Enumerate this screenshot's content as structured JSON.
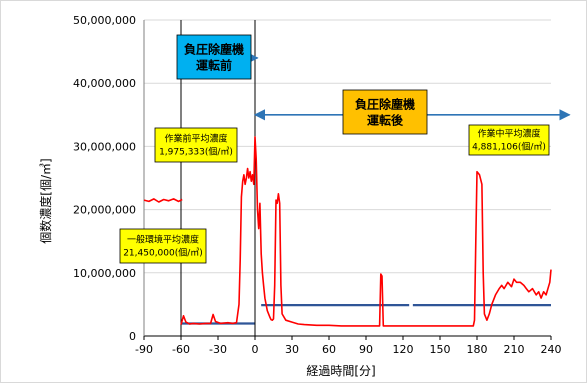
{
  "chart_data": {
    "type": "line",
    "ylabel": "個数濃度[個/㎥]",
    "xlabel": "経過時間[分]",
    "xlim": [
      -90,
      240
    ],
    "ylim": [
      0,
      50000000
    ],
    "xticks": [
      -90,
      -60,
      -30,
      0,
      30,
      60,
      90,
      120,
      150,
      180,
      210,
      240
    ],
    "xtick_labels": [
      "-90",
      "-60",
      "-30",
      "0",
      "30",
      "60",
      "90",
      "120",
      "150",
      "180",
      "210",
      "240"
    ],
    "yticks": [
      0,
      10000000,
      20000000,
      30000000,
      40000000,
      50000000
    ],
    "ytick_labels": [
      "0",
      "10,000,000",
      "20,000,000",
      "30,000,000",
      "40,000,000",
      "50,000,000"
    ],
    "grid": "horizontal",
    "series": [
      {
        "color": "#ff0000",
        "segments": [
          [
            [
              -90,
              21500000
            ],
            [
              -86,
              21300000
            ],
            [
              -82,
              21700000
            ],
            [
              -78,
              21200000
            ],
            [
              -74,
              21600000
            ],
            [
              -70,
              21400000
            ],
            [
              -66,
              21700000
            ],
            [
              -62,
              21300000
            ],
            [
              -59,
              21600000
            ]
          ],
          [
            [
              -60,
              1800000
            ],
            [
              -58,
              3200000
            ],
            [
              -56,
              2200000
            ],
            [
              -53,
              1900000
            ],
            [
              -50,
              2000000
            ],
            [
              -45,
              1900000
            ],
            [
              -40,
              2000000
            ],
            [
              -36,
              2000000
            ],
            [
              -34,
              3400000
            ],
            [
              -32,
              2300000
            ],
            [
              -28,
              2000000
            ],
            [
              -22,
              2100000
            ],
            [
              -18,
              2000000
            ],
            [
              -15,
              2100000
            ],
            [
              -13,
              5000000
            ],
            [
              -12,
              12000000
            ],
            [
              -11,
              22000000
            ],
            [
              -10,
              24500000
            ],
            [
              -9,
              25500000
            ],
            [
              -8,
              24000000
            ],
            [
              -7,
              25000000
            ],
            [
              -6,
              26500000
            ],
            [
              -5,
              25000000
            ],
            [
              -4,
              26000000
            ],
            [
              -3,
              24500000
            ],
            [
              -2,
              25500000
            ],
            [
              -1,
              24000000
            ],
            [
              0,
              31500000
            ],
            [
              1,
              28000000
            ],
            [
              2,
              20000000
            ],
            [
              3,
              17000000
            ],
            [
              4,
              21000000
            ],
            [
              5,
              13000000
            ],
            [
              6,
              10000000
            ],
            [
              7,
              8000000
            ],
            [
              8,
              6000000
            ],
            [
              9,
              5000000
            ],
            [
              10,
              4000000
            ],
            [
              11,
              3500000
            ],
            [
              12,
              3000000
            ],
            [
              13,
              2600000
            ],
            [
              14,
              2500000
            ],
            [
              15,
              2700000
            ],
            [
              16,
              8000000
            ],
            [
              17,
              21500000
            ],
            [
              18,
              21000000
            ],
            [
              19,
              22500000
            ],
            [
              20,
              21000000
            ],
            [
              21,
              8000000
            ],
            [
              22,
              3500000
            ],
            [
              25,
              2500000
            ],
            [
              30,
              2200000
            ],
            [
              35,
              1900000
            ],
            [
              40,
              1800000
            ],
            [
              50,
              1700000
            ],
            [
              60,
              1700000
            ],
            [
              70,
              1600000
            ],
            [
              80,
              1600000
            ],
            [
              90,
              1600000
            ],
            [
              100,
              1600000
            ],
            [
              101,
              1600000
            ],
            [
              102,
              9800000
            ],
            [
              103,
              9500000
            ],
            [
              104,
              1600000
            ],
            [
              110,
              1600000
            ],
            [
              120,
              1600000
            ],
            [
              130,
              1600000
            ],
            [
              140,
              1600000
            ],
            [
              150,
              1600000
            ],
            [
              160,
              1600000
            ],
            [
              170,
              1600000
            ],
            [
              177,
              1600000
            ],
            [
              178,
              2500000
            ],
            [
              179,
              15000000
            ],
            [
              180,
              26000000
            ],
            [
              182,
              25500000
            ],
            [
              184,
              24000000
            ],
            [
              185,
              10000000
            ],
            [
              186,
              3500000
            ],
            [
              188,
              2500000
            ],
            [
              190,
              3500000
            ],
            [
              192,
              5000000
            ],
            [
              195,
              6500000
            ],
            [
              198,
              7500000
            ],
            [
              200,
              8000000
            ],
            [
              202,
              7500000
            ],
            [
              205,
              8500000
            ],
            [
              208,
              7800000
            ],
            [
              210,
              9000000
            ],
            [
              212,
              8500000
            ],
            [
              215,
              8500000
            ],
            [
              218,
              8000000
            ],
            [
              220,
              7500000
            ],
            [
              222,
              7000000
            ],
            [
              225,
              7500000
            ],
            [
              228,
              6500000
            ],
            [
              230,
              7000000
            ],
            [
              232,
              6000000
            ],
            [
              234,
              7000000
            ],
            [
              236,
              6500000
            ],
            [
              238,
              7800000
            ],
            [
              239,
              8500000
            ],
            [
              240,
              10500000
            ]
          ]
        ]
      }
    ],
    "average_lines": [
      {
        "color": "#2f5597",
        "x": [
          -60,
          0
        ],
        "y": 1975333
      },
      {
        "color": "#2f5597",
        "x": [
          5,
          125
        ],
        "y": 4881106
      },
      {
        "color": "#2f5597",
        "x": [
          128,
          240
        ],
        "y": 4881106
      }
    ],
    "vertical_lines": [
      -60,
      0
    ],
    "arrows": [
      {
        "from_x": -62,
        "to_x": 2,
        "y": 44000000,
        "color": "#2e75b6"
      },
      {
        "from_x": 0,
        "to_x": 255,
        "y": 35000000,
        "color": "#2e75b6"
      }
    ],
    "annotations": [
      {
        "lines": [
          "負圧除塵機",
          "運転前"
        ],
        "fill": "#00b0f0",
        "bold": true
      },
      {
        "lines": [
          "負圧除塵機",
          "運転後"
        ],
        "fill": "#ffc000",
        "bold": true
      },
      {
        "lines": [
          "作業前平均濃度",
          "1,975,333(個/㎥)"
        ],
        "fill": "#ffff00",
        "bold": false
      },
      {
        "lines": [
          "作業中平均濃度",
          "4,881,106(個/㎥)"
        ],
        "fill": "#ffff00",
        "bold": false
      },
      {
        "lines": [
          "一般環境平均濃度",
          "21,450,000(個/㎥)"
        ],
        "fill": "#ffff00",
        "bold": false
      }
    ]
  }
}
